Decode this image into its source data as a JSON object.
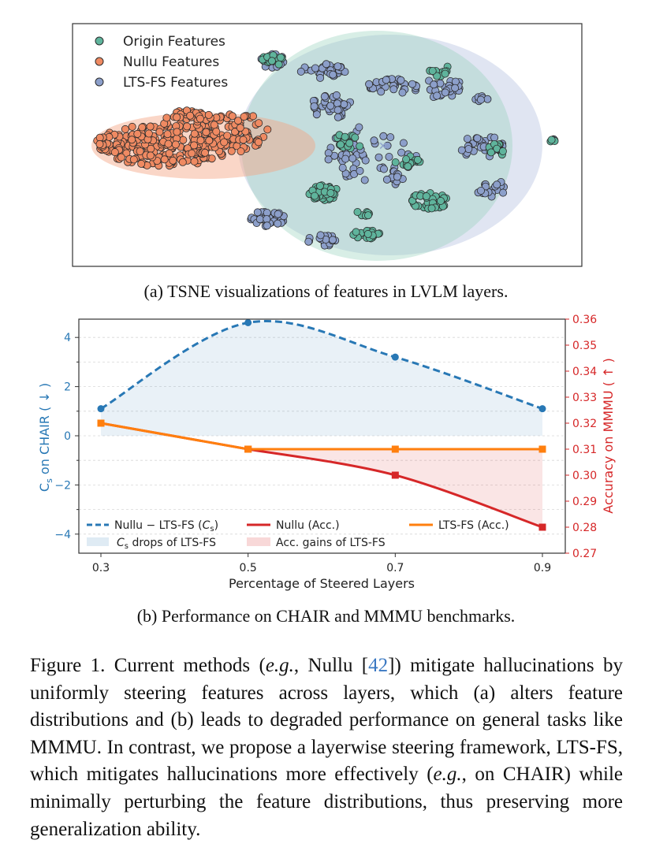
{
  "tsne": {
    "legend": [
      "Origin Features",
      "Nullu Features",
      "LTS-FS Features"
    ],
    "colors": {
      "origin": "#5fb49c",
      "nullu": "#ef8a62",
      "ltsfs": "#8c9fca",
      "edge": "#2c2c2c"
    },
    "caption": "(a) TSNE visualizations of features in LVLM layers."
  },
  "chart_data": {
    "type": "line",
    "x": [
      0.3,
      0.5,
      0.7,
      0.9
    ],
    "xlabel": "Percentage of Steered Layers",
    "ylabel_left": "C_s on CHAIR (↓)",
    "ylabel_right": "Accuracy on MMMU (↑)",
    "ylim_left": [
      -4.7,
      4.7
    ],
    "ylim_right": [
      0.27,
      0.36
    ],
    "left_ticks": [
      "4",
      "2",
      "0",
      "−2",
      "−4"
    ],
    "right_ticks": [
      "0.36",
      "0.35",
      "0.34",
      "0.33",
      "0.32",
      "0.31",
      "0.30",
      "0.29",
      "0.28",
      "0.27"
    ],
    "x_ticks": [
      "0.3",
      "0.5",
      "0.7",
      "0.9"
    ],
    "series": [
      {
        "name": "Nullu − LTS-FS (Cs)",
        "axis": "left",
        "values": [
          1.1,
          4.6,
          3.2,
          1.1
        ],
        "color": "#2878b5",
        "style": "dashed"
      },
      {
        "name": "Nullu (Acc.)",
        "axis": "right",
        "values": [
          0.32,
          0.31,
          0.3,
          0.28
        ],
        "color": "#d62728"
      },
      {
        "name": "LTS-FS (Acc.)",
        "axis": "right",
        "values": [
          0.32,
          0.31,
          0.31,
          0.31
        ],
        "color": "#ff7f0e"
      }
    ],
    "fills": [
      "Cs drops of LTS-FS",
      "Acc. gains of LTS-FS"
    ],
    "legend": {
      "dashed_prefix": "Nullu − LTS-FS (",
      "cs": "C",
      "cs_sub": "s",
      "dashed_suffix": ")",
      "nullu_acc": "Nullu (Acc.)",
      "ltsfs_acc": "LTS-FS (Acc.)",
      "fill_cs_suffix": " drops of LTS-FS",
      "fill_acc": "Acc. gains of LTS-FS"
    },
    "ylabel_left_parts": {
      "c": "C",
      "sub": "s",
      "rest": " on CHAIR ( ↓ )"
    },
    "ylabel_right_text": "Accuracy on MMMU ( ↑ )",
    "caption": "(b) Performance on CHAIR and MMMU benchmarks."
  },
  "figure": {
    "label": "Figure 1.",
    "p1": "Current methods (",
    "eg1": "e.g.",
    "p2": ", Nullu [",
    "ref": "42",
    "p3": "]) mitigate hallucinations by uniformly steering features across layers, which (a) alters feature distributions and (b) leads to degraded performance on general tasks like MMMU. In contrast, we propose a layerwise steering framework, LTS-FS, which mitigates hallucinations more effectively (",
    "eg2": "e.g.",
    "p4": ", on CHAIR) while minimally perturbing the feature distributions, thus preserving more generalization ability."
  }
}
